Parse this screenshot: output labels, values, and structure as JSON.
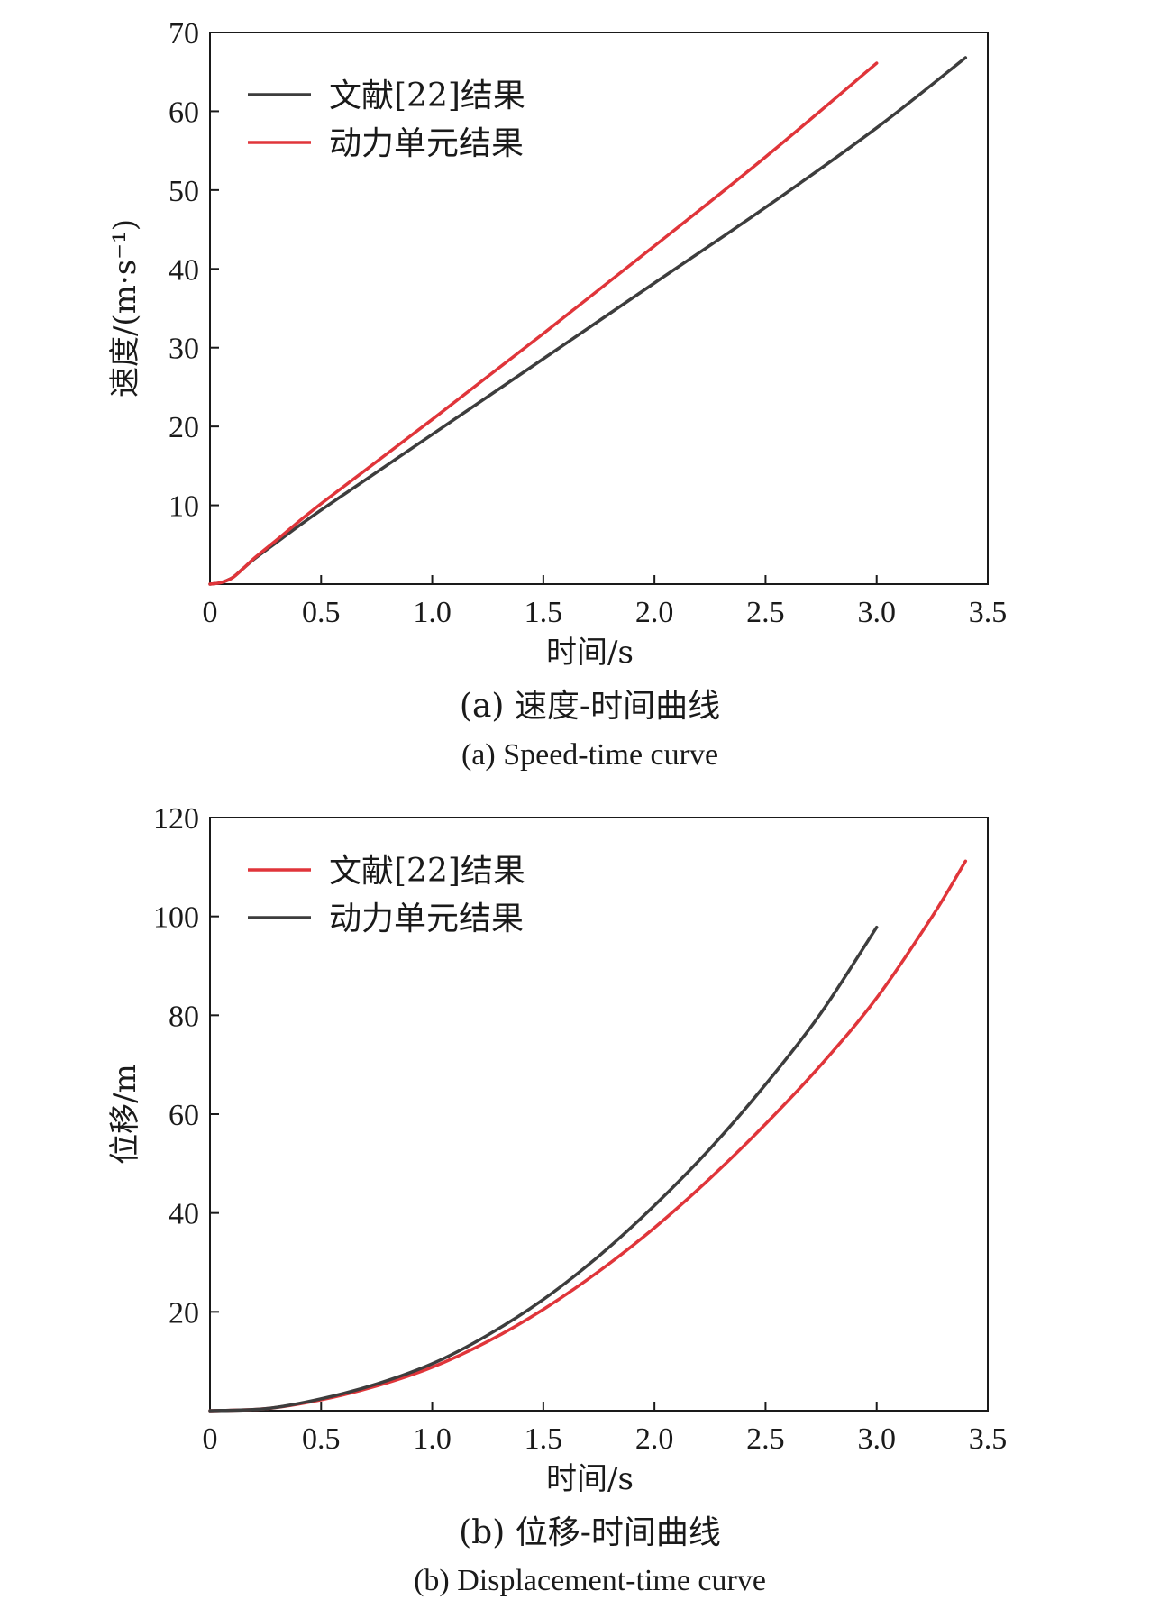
{
  "chart_data": [
    {
      "type": "line",
      "xlabel": "时间/s",
      "ylabel": "速度/(m·s⁻¹)",
      "xlim": [
        0,
        3.5
      ],
      "ylim": [
        0,
        70
      ],
      "xticks": [
        0,
        0.5,
        1.0,
        1.5,
        2.0,
        2.5,
        3.0,
        3.5
      ],
      "xtick_labels": [
        "0",
        "0.5",
        "1.0",
        "1.5",
        "2.0",
        "2.5",
        "3.0",
        "3.5"
      ],
      "yticks": [
        10,
        20,
        30,
        40,
        50,
        60,
        70
      ],
      "ytick_labels": [
        "10",
        "20",
        "30",
        "40",
        "50",
        "60",
        "70"
      ],
      "legend_position": "top-left",
      "grid": false,
      "caption_cn": "(a) 速度-时间曲线",
      "caption_en": "(a) Speed-time curve",
      "series": [
        {
          "name": "文献[22]结果",
          "color": "#3d3d3d",
          "x": [
            0,
            0.05,
            0.1,
            0.15,
            0.2,
            0.3,
            0.5,
            1.0,
            1.5,
            2.0,
            2.5,
            3.0,
            3.4
          ],
          "y": [
            0,
            0.2,
            0.8,
            2.0,
            3.2,
            5.3,
            9.4,
            19.0,
            28.6,
            38.2,
            47.8,
            57.9,
            66.8
          ]
        },
        {
          "name": "动力单元结果",
          "color": "#e0353a",
          "x": [
            0,
            0.05,
            0.1,
            0.15,
            0.2,
            0.3,
            0.5,
            1.0,
            1.5,
            2.0,
            2.5,
            3.0
          ],
          "y": [
            0,
            0.2,
            0.8,
            2.0,
            3.3,
            5.6,
            10.2,
            20.9,
            31.8,
            42.9,
            54.2,
            66.1
          ]
        }
      ]
    },
    {
      "type": "line",
      "xlabel": "时间/s",
      "ylabel": "位移/m",
      "xlim": [
        0,
        3.5
      ],
      "ylim": [
        0,
        120
      ],
      "xticks": [
        0,
        0.5,
        1.0,
        1.5,
        2.0,
        2.5,
        3.0,
        3.5
      ],
      "xtick_labels": [
        "0",
        "0.5",
        "1.0",
        "1.5",
        "2.0",
        "2.5",
        "3.0",
        "3.5"
      ],
      "yticks": [
        20,
        40,
        60,
        80,
        100,
        120
      ],
      "ytick_labels": [
        "20",
        "40",
        "60",
        "80",
        "100",
        "120"
      ],
      "legend_position": "top-left",
      "grid": false,
      "caption_cn": "(b) 位移-时间曲线",
      "caption_en": "(b) Displacement-time curve",
      "series": [
        {
          "name": "文献[22]结果",
          "color": "#e0353a",
          "x": [
            0,
            0.25,
            0.5,
            0.75,
            1.0,
            1.25,
            1.5,
            1.75,
            2.0,
            2.25,
            2.5,
            2.75,
            3.0,
            3.25,
            3.4
          ],
          "y": [
            0,
            0.4,
            2.2,
            5.0,
            8.8,
            14.0,
            20.5,
            28.2,
            37.0,
            47.0,
            58.0,
            70.0,
            83.5,
            100.0,
            111.2
          ]
        },
        {
          "name": "动力单元结果",
          "color": "#3d3d3d",
          "x": [
            0,
            0.25,
            0.5,
            0.75,
            1.0,
            1.25,
            1.5,
            1.75,
            2.0,
            2.25,
            2.5,
            2.75,
            3.0
          ],
          "y": [
            0,
            0.4,
            2.4,
            5.4,
            9.5,
            15.3,
            22.5,
            31.3,
            41.5,
            53.0,
            66.0,
            80.5,
            97.8
          ]
        }
      ]
    }
  ]
}
